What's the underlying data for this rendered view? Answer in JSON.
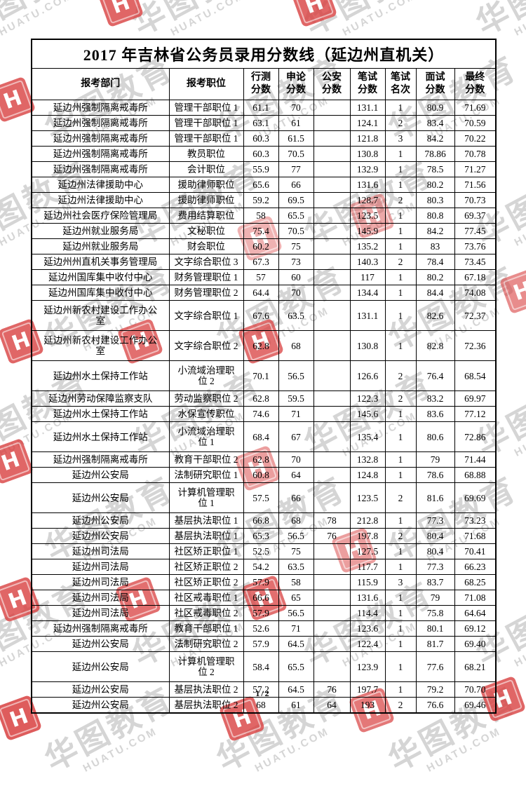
{
  "page": {
    "title": "2017 年吉林省公务员录用分数线（延边州直机关）",
    "page_indicator": "1/2"
  },
  "watermark": {
    "brand_text": "华图教育",
    "brand_url": "HUATU.COM",
    "stamp_color": "#d94040",
    "stamp_letter": "H"
  },
  "table": {
    "headers": [
      "报考部门",
      "报考职位",
      "行测\n分数",
      "申论\n分数",
      "公安\n分数",
      "笔试\n分数",
      "笔试\n名次",
      "面试\n分数",
      "最终\n分数"
    ],
    "rows": [
      [
        "延边州强制隔离戒毒所",
        "管理干部职位 1",
        "61.1",
        "70",
        "",
        "131.1",
        "1",
        "80.9",
        "71.69"
      ],
      [
        "延边州强制隔离戒毒所",
        "管理干部职位 1",
        "63.1",
        "61",
        "",
        "124.1",
        "2",
        "83.4",
        "70.59"
      ],
      [
        "延边州强制隔离戒毒所",
        "管理干部职位 1",
        "60.3",
        "61.5",
        "",
        "121.8",
        "3",
        "84.2",
        "70.22"
      ],
      [
        "延边州强制隔离戒毒所",
        "教员职位",
        "60.3",
        "70.5",
        "",
        "130.8",
        "1",
        "78.86",
        "70.78"
      ],
      [
        "延边州强制隔离戒毒所",
        "会计职位",
        "55.9",
        "77",
        "",
        "132.9",
        "1",
        "78.5",
        "71.27"
      ],
      [
        "延边州法律援助中心",
        "援助律师职位",
        "65.6",
        "66",
        "",
        "131.6",
        "1",
        "80.2",
        "71.56"
      ],
      [
        "延边州法律援助中心",
        "援助律师职位",
        "59.2",
        "69.5",
        "",
        "128.7",
        "2",
        "80.3",
        "70.73"
      ],
      [
        "延边州社会医疗保险管理局",
        "费用结算职位",
        "58",
        "65.5",
        "",
        "123.5",
        "1",
        "80.8",
        "69.37"
      ],
      [
        "延边州就业服务局",
        "文秘职位",
        "75.4",
        "70.5",
        "",
        "145.9",
        "1",
        "84.2",
        "77.45"
      ],
      [
        "延边州就业服务局",
        "财会职位",
        "60.2",
        "75",
        "",
        "135.2",
        "1",
        "83",
        "73.76"
      ],
      [
        "延边州州直机关事务管理局",
        "文字综合职位 3",
        "67.3",
        "73",
        "",
        "140.3",
        "2",
        "78.4",
        "73.45"
      ],
      [
        "延边州国库集中收付中心",
        "财务管理职位 1",
        "57",
        "60",
        "",
        "117",
        "1",
        "80.2",
        "67.18"
      ],
      [
        "延边州国库集中收付中心",
        "财务管理职位 2",
        "64.4",
        "70",
        "",
        "134.4",
        "1",
        "84.4",
        "74.08"
      ],
      [
        "延边州新农村建设工作办公\n室",
        "文字综合职位 1",
        "67.6",
        "63.5",
        "",
        "131.1",
        "1",
        "82.6",
        "72.37"
      ],
      [
        "延边州新农村建设工作办公\n室",
        "文字综合职位 2",
        "62.8",
        "68",
        "",
        "130.8",
        "1",
        "82.8",
        "72.36"
      ],
      [
        "延边州水土保持工作站",
        "小流域治理职\n位 2",
        "70.1",
        "56.5",
        "",
        "126.6",
        "2",
        "76.4",
        "68.54"
      ],
      [
        "延边州劳动保障监察支队",
        "劳动监察职位 2",
        "62.8",
        "59.5",
        "",
        "122.3",
        "2",
        "83.2",
        "69.97"
      ],
      [
        "延边州水土保持工作站",
        "水保宣传职位",
        "74.6",
        "71",
        "",
        "145.6",
        "1",
        "83.6",
        "77.12"
      ],
      [
        "延边州水土保持工作站",
        "小流域治理职\n位 1",
        "68.4",
        "67",
        "",
        "135.4",
        "1",
        "80.6",
        "72.86"
      ],
      [
        "延边州强制隔离戒毒所",
        "教育干部职位 2",
        "62.8",
        "70",
        "",
        "132.8",
        "1",
        "79",
        "71.44"
      ],
      [
        "延边州公安局",
        "法制研究职位 1",
        "60.8",
        "64",
        "",
        "124.8",
        "1",
        "78.6",
        "68.88"
      ],
      [
        "延边州公安局",
        "计算机管理职\n位 1",
        "57.5",
        "66",
        "",
        "123.5",
        "2",
        "81.6",
        "69.69"
      ],
      [
        "延边州公安局",
        "基层执法职位 1",
        "66.8",
        "68",
        "78",
        "212.8",
        "1",
        "77.3",
        "73.23"
      ],
      [
        "延边州公安局",
        "基层执法职位 1",
        "65.3",
        "56.5",
        "76",
        "197.8",
        "2",
        "80.4",
        "71.68"
      ],
      [
        "延边州司法局",
        "社区矫正职位 1",
        "52.5",
        "75",
        "",
        "127.5",
        "1",
        "80.4",
        "70.41"
      ],
      [
        "延边州司法局",
        "社区矫正职位 2",
        "54.2",
        "63.5",
        "",
        "117.7",
        "1",
        "77.3",
        "66.23"
      ],
      [
        "延边州司法局",
        "社区矫正职位 2",
        "57.9",
        "58",
        "",
        "115.9",
        "3",
        "83.7",
        "68.25"
      ],
      [
        "延边州司法局",
        "社区戒毒职位 1",
        "66.6",
        "65",
        "",
        "131.6",
        "1",
        "79",
        "71.08"
      ],
      [
        "延边州司法局",
        "社区戒毒职位 2",
        "57.9",
        "56.5",
        "",
        "114.4",
        "1",
        "75.8",
        "64.64"
      ],
      [
        "延边州强制隔离戒毒所",
        "教育干部职位 1",
        "52.6",
        "71",
        "",
        "123.6",
        "1",
        "80.1",
        "69.12"
      ],
      [
        "延边州公安局",
        "法制研究职位 2",
        "57.9",
        "64.5",
        "",
        "122.4",
        "1",
        "81.7",
        "69.40"
      ],
      [
        "延边州公安局",
        "计算机管理职\n位 2",
        "58.4",
        "65.5",
        "",
        "123.9",
        "1",
        "77.6",
        "68.21"
      ],
      [
        "延边州公安局",
        "基层执法职位 2",
        "57.2",
        "64.5",
        "76",
        "197.7",
        "1",
        "79.2",
        "70.70"
      ],
      [
        "延边州公安局",
        "基层执法职位 2",
        "68",
        "61",
        "64",
        "193",
        "2",
        "76.6",
        "69.46"
      ]
    ]
  }
}
